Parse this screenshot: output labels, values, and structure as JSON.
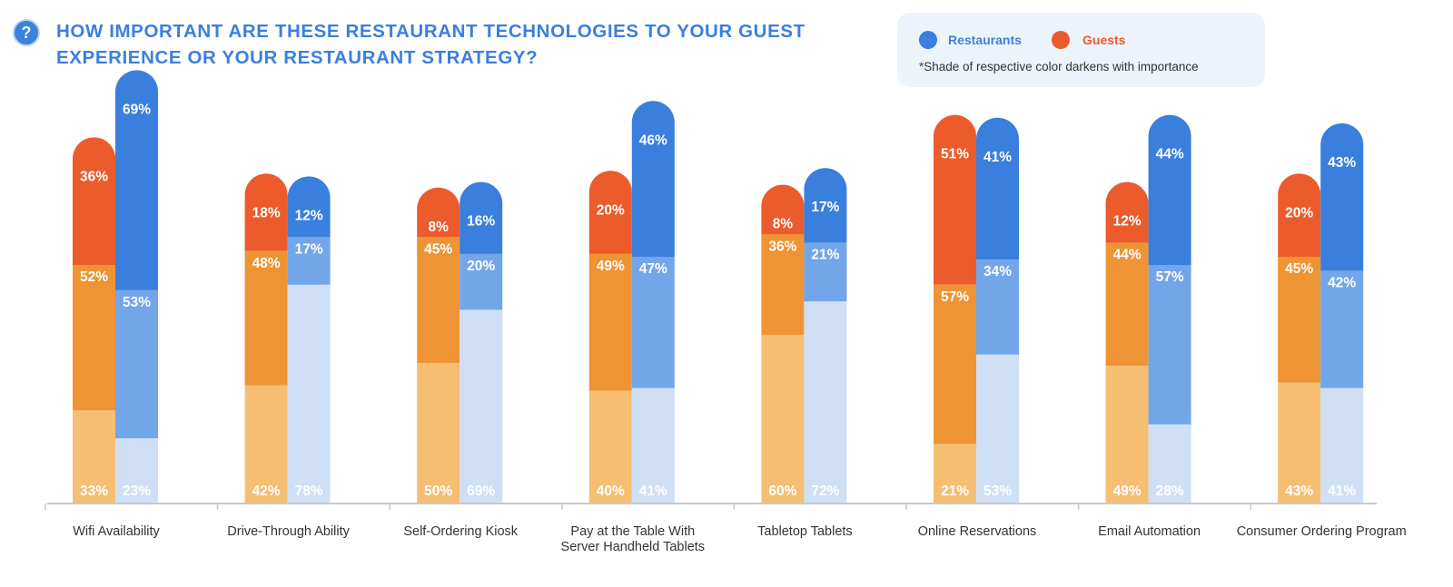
{
  "header": {
    "help_icon": "?",
    "title": "HOW IMPORTANT ARE THESE RESTAURANT TECHNOLOGIES TO YOUR GUEST EXPERIENCE OR YOUR RESTAURANT STRATEGY?"
  },
  "legend": {
    "restaurants_label": "Restaurants",
    "guests_label": "Guests",
    "note": "*Shade of respective color darkens with importance"
  },
  "colors": {
    "guests": [
      "#f5be73",
      "#ef9434",
      "#ec5b2b"
    ],
    "restaurants": [
      "#cfe0f6",
      "#72a6e8",
      "#3a7fdd"
    ],
    "title": "#3a7fe0",
    "axis": "#c9c9c9"
  },
  "chart_data": {
    "type": "bar",
    "stacked": true,
    "title": "HOW IMPORTANT ARE THESE RESTAURANT TECHNOLOGIES TO YOUR GUEST EXPERIENCE OR YOUR RESTAURANT STRATEGY?",
    "stack_order": "bottom (least important) to top (most important)",
    "value_unit": "%",
    "ylim": [
      0,
      100
    ],
    "categories": [
      "Wifi Availability",
      "Drive-Through Ability",
      "Self-Ordering Kiosk",
      "Pay at the Table With Server Handheld Tablets",
      "Tabletop Tablets",
      "Online Reservations",
      "Email Automation",
      "Consumer Ordering Program"
    ],
    "series": [
      {
        "name": "Guests",
        "segments": [
          [
            33,
            52,
            36
          ],
          [
            42,
            48,
            18
          ],
          [
            50,
            45,
            8
          ],
          [
            40,
            49,
            20
          ],
          [
            60,
            36,
            8
          ],
          [
            21,
            57,
            51
          ],
          [
            49,
            44,
            12
          ],
          [
            43,
            45,
            20
          ]
        ]
      },
      {
        "name": "Restaurants",
        "segments": [
          [
            23,
            53,
            69
          ],
          [
            78,
            17,
            12
          ],
          [
            69,
            20,
            16
          ],
          [
            41,
            47,
            46
          ],
          [
            72,
            21,
            17
          ],
          [
            53,
            34,
            41
          ],
          [
            28,
            57,
            44
          ],
          [
            41,
            42,
            43
          ]
        ]
      }
    ]
  }
}
